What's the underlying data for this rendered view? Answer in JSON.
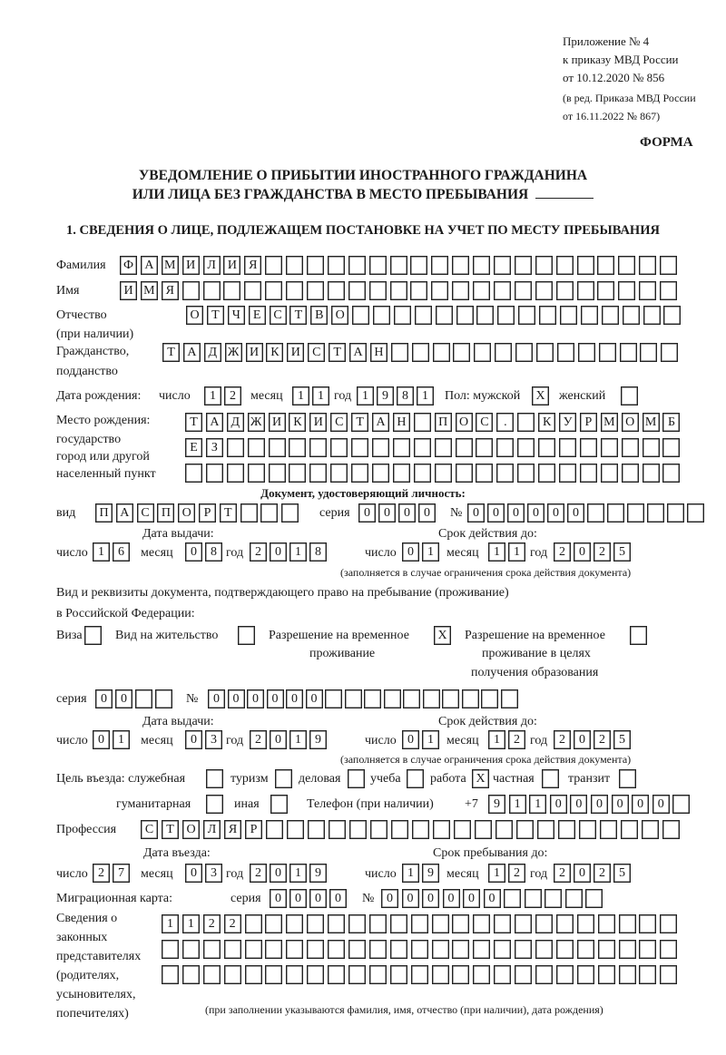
{
  "header": {
    "annex_lines": [
      "Приложение № 4",
      "к приказу МВД России",
      "от 10.12.2020 № 856"
    ],
    "edition_lines": [
      "(в ред. Приказа МВД России",
      "от 16.11.2022 № 867)"
    ],
    "form_label": "ФОРМА",
    "title_line1": "УВЕДОМЛЕНИЕ О ПРИБЫТИИ ИНОСТРАННОГО ГРАЖДАНИНА",
    "title_line2": "ИЛИ ЛИЦА БЕЗ ГРАЖДАНСТВА В МЕСТО ПРЕБЫВАНИЯ",
    "section_title": "1. СВЕДЕНИЯ О ЛИЦЕ, ПОДЛЕЖАЩЕМ ПОСТАНОВКЕ НА УЧЕТ ПО МЕСТУ ПРЕБЫВАНИЯ"
  },
  "person": {
    "surname_label": "Фамилия",
    "surname": "ФАМИЛИЯ",
    "name_label": "Имя",
    "name": "ИМЯ",
    "patronymic_label": "Отчество",
    "patronymic_sub": "(при наличии)",
    "patronymic": "ОТЧЕСТВО",
    "citizenship_label": "Гражданство,",
    "citizenship_sub": "подданство",
    "citizenship": "ТАДЖИКИСТАН",
    "birth_label": "Дата рождения:",
    "day_label": "число",
    "month_label": "месяц",
    "year_label": "год",
    "birth_day": "12",
    "birth_month": "11",
    "birth_year": "1981",
    "sex_label": "Пол: мужской",
    "male": "Х",
    "female_label": "женский",
    "female": "",
    "birthplace_labels": [
      "Место рождения:",
      "государство",
      "город или другой",
      "населенный пункт"
    ],
    "birthplace_row1": "ТАДЖИКИСТАН ПОС. КУРМОМБ",
    "birthplace_row2": "ЕЗ",
    "birthplace_row3": ""
  },
  "identity_doc": {
    "heading": "Документ, удостоверяющий личность:",
    "type_label": "вид",
    "type": "ПАСПОРТ",
    "series_label": "серия",
    "series": "0000",
    "number_label": "№",
    "number": "000000",
    "issue_label": "Дата выдачи:",
    "valid_label": "Срок действия до:",
    "day_label": "число",
    "month_label": "месяц",
    "year_label": "год",
    "issue_day": "16",
    "issue_month": "08",
    "issue_year": "2018",
    "valid_day": "01",
    "valid_month": "11",
    "valid_year": "2025",
    "note": "(заполняется в случае ограничения срока действия документа)"
  },
  "stay_doc": {
    "heading1": "Вид и реквизиты документа, подтверждающего право на пребывание (проживание)",
    "heading2": "в Российской Федерации:",
    "visa_label": "Виза",
    "visa": "",
    "residence_label": "Вид на жительство",
    "residence": "",
    "temp_label1": "Разрешение на временное",
    "temp_label2": "проживание",
    "temp": "Х",
    "temp_edu_label1": "Разрешение на временное",
    "temp_edu_label2": "проживание в целях",
    "temp_edu_label3": "получения образования",
    "temp_edu": "",
    "series_label": "серия",
    "series": "00",
    "number_label": "№",
    "number": "000000",
    "issue_label": "Дата выдачи:",
    "valid_label": "Срок действия до:",
    "day_label": "число",
    "month_label": "месяц",
    "year_label": "год",
    "issue_day": "01",
    "issue_month": "03",
    "issue_year": "2019",
    "valid_day": "01",
    "valid_month": "12",
    "valid_year": "2025",
    "note": "(заполняется в случае ограничения срока действия документа)"
  },
  "purpose": {
    "label": "Цель въезда: служебная",
    "official": "",
    "tourism_label": "туризм",
    "tourism": "",
    "business_label": "деловая",
    "business": "",
    "study_label": "учеба",
    "study": "",
    "work_label": "работа",
    "work": "Х",
    "private_label": "частная",
    "private": "",
    "transit_label": "транзит",
    "transit": "",
    "humanitarian_label": "гуманитарная",
    "humanitarian": "",
    "other_label": "иная",
    "other": "",
    "phone_label": "Телефон (при наличии)",
    "phone_prefix": "+7",
    "phone": "911000000"
  },
  "profession": {
    "label": "Профессия",
    "value": "СТОЛЯР"
  },
  "entry": {
    "entry_label": "Дата въезда:",
    "stay_label": "Срок пребывания до:",
    "day_label": "число",
    "month_label": "месяц",
    "year_label": "год",
    "entry_day": "27",
    "entry_month": "03",
    "entry_year": "2019",
    "stay_day": "19",
    "stay_month": "12",
    "stay_year": "2025"
  },
  "migration_card": {
    "label": "Миграционная карта:",
    "series_label": "серия",
    "series": "0000",
    "number_label": "№",
    "number": "000000"
  },
  "representatives": {
    "labels": [
      "Сведения о",
      "законных",
      "представителях",
      "(родителях,",
      "усыновителях,",
      "попечителях)"
    ],
    "row1": "1122",
    "row2": "",
    "row3": "",
    "note": "(при заполнении указываются фамилия, имя, отчество (при наличии), дата рождения)"
  }
}
